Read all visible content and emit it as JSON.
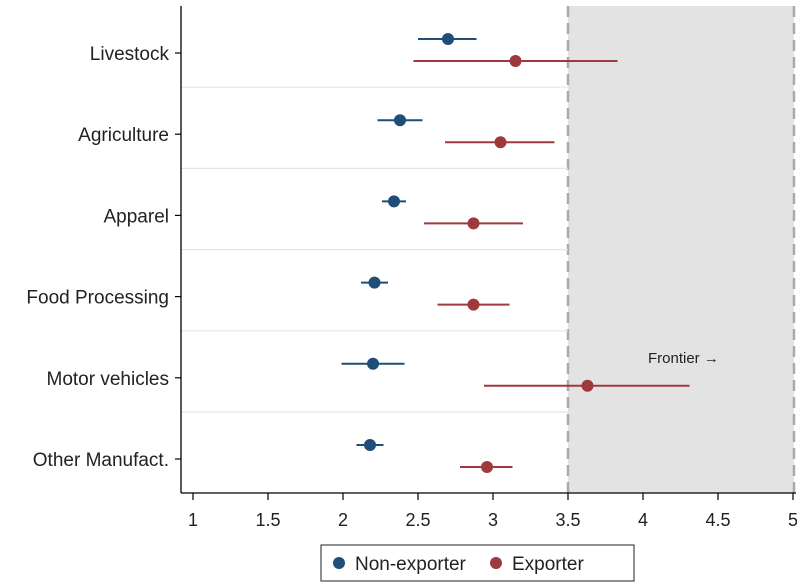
{
  "chart_data": {
    "type": "scatter",
    "subtype": "dot-and-whisker",
    "orientation": "horizontal",
    "categories": [
      "Livestock",
      "Agriculture",
      "Apparel",
      "Food Processing",
      "Motor vehicles",
      "Other Manufact."
    ],
    "xlim": [
      0.92,
      5.02
    ],
    "x_ticks": [
      "1",
      "1.5",
      "2",
      "2.5",
      "3",
      "3.5",
      "4",
      "4.5",
      "5"
    ],
    "series": [
      {
        "name": "Non-exporter",
        "color": "#1f4e79",
        "values": [
          2.7,
          2.38,
          2.34,
          2.21,
          2.2,
          2.18
        ],
        "ci_low": [
          2.5,
          2.23,
          2.26,
          2.12,
          1.99,
          2.09
        ],
        "ci_high": [
          2.89,
          2.53,
          2.42,
          2.3,
          2.41,
          2.27
        ]
      },
      {
        "name": "Exporter",
        "color": "#9e3a3e",
        "values": [
          3.15,
          3.05,
          2.87,
          2.87,
          3.63,
          2.96
        ],
        "ci_low": [
          2.47,
          2.68,
          2.54,
          2.63,
          2.94,
          2.78
        ],
        "ci_high": [
          3.83,
          3.41,
          3.2,
          3.11,
          4.31,
          3.13
        ]
      }
    ],
    "frontier": {
      "x": 3.5,
      "label": "Frontier →"
    },
    "legend": {
      "placement": "bottom"
    },
    "grid": false
  }
}
